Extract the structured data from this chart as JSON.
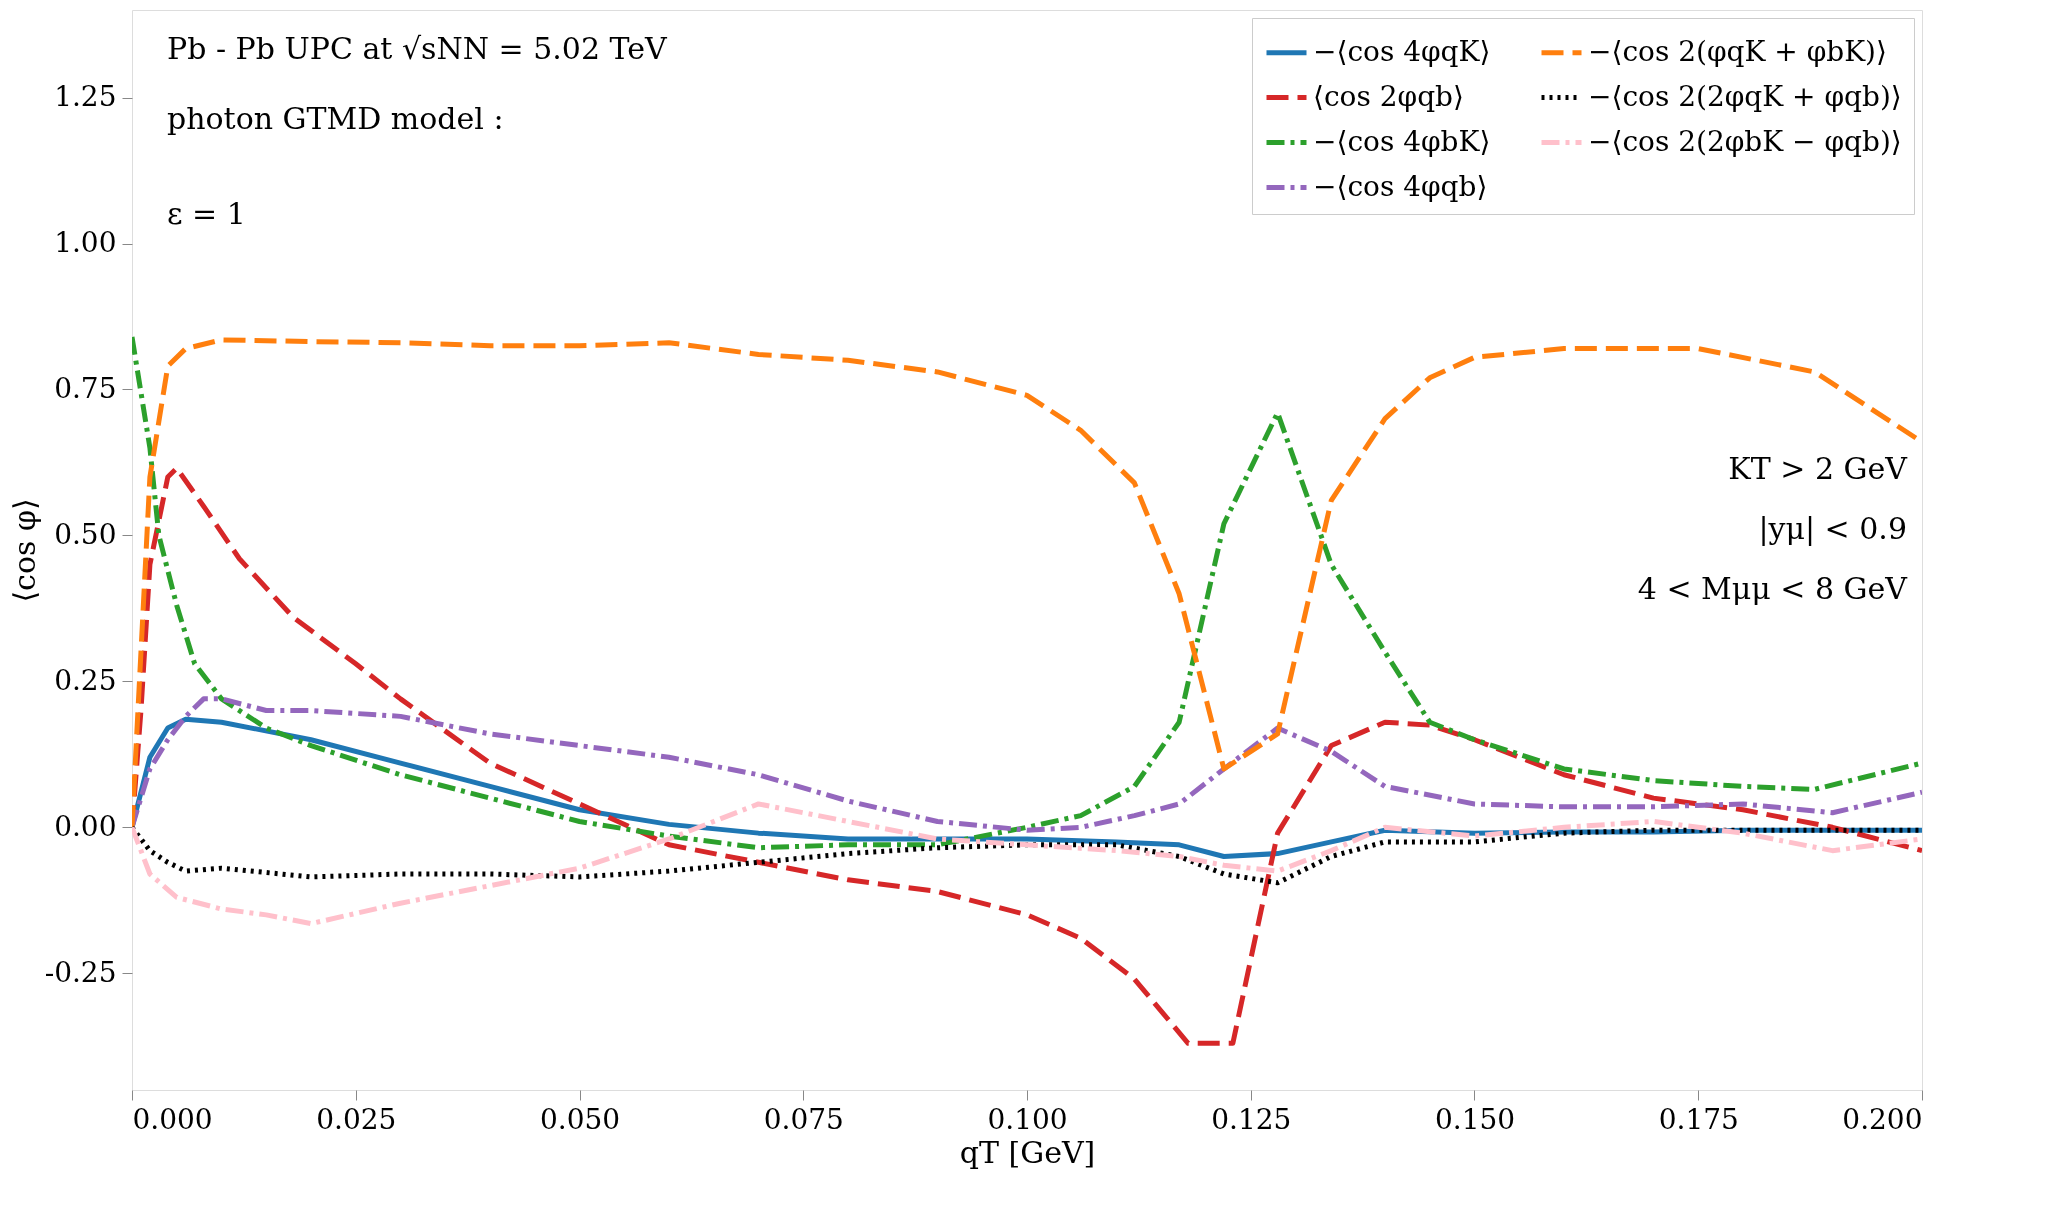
{
  "chart_data": {
    "type": "line",
    "xlabel": "qT [GeV]",
    "ylabel": "⟨cos φ⟩",
    "xlim": [
      0,
      0.2
    ],
    "ylim": [
      -0.45,
      1.4
    ],
    "xticks": [
      {
        "value": 0,
        "label": "0.000"
      },
      0.025,
      {
        "value": 0.05,
        "label": "0.050"
      },
      0.075,
      {
        "value": 0.1,
        "label": "0.100"
      },
      0.125,
      {
        "value": 0.15,
        "label": "0.150"
      },
      0.175,
      {
        "value": 0.2,
        "label": "0.200"
      }
    ],
    "yticks": [
      -0.25,
      {
        "value": 0,
        "label": "0.00"
      },
      0.25,
      {
        "value": 0.5,
        "label": "0.50"
      },
      0.75,
      {
        "value": 1,
        "label": "1.00"
      },
      1.25
    ],
    "grid": false,
    "legend": "top right",
    "marker": "none",
    "annotations": [
      "Pb - Pb UPC at √sNN = 5.02 TeV",
      "photon GTMD model :",
      "ε = 1",
      "KT > 2 GeV",
      "|yμ| < 0.9",
      "4 < Mμμ < 8 GeV"
    ],
    "series": [
      {
        "name": "−⟨cos 4φqK⟩",
        "color": "#1f77b4",
        "line_style": "solid",
        "x": [
          0,
          0.002,
          0.004,
          0.006,
          0.01,
          0.02,
          0.03,
          0.04,
          0.05,
          0.06,
          0.07,
          0.08,
          0.09,
          0.1,
          0.11,
          0.117,
          0.122,
          0.128,
          0.134,
          0.14,
          0.15,
          0.16,
          0.17,
          0.18,
          0.19,
          0.2
        ],
        "values": [
          0,
          0.12,
          0.17,
          0.185,
          0.18,
          0.15,
          0.11,
          0.07,
          0.03,
          0.005,
          -0.01,
          -0.02,
          -0.02,
          -0.02,
          -0.025,
          -0.03,
          -0.05,
          -0.045,
          -0.025,
          -0.005,
          -0.01,
          -0.008,
          -0.008,
          -0.005,
          -0.005,
          -0.005
        ]
      },
      {
        "name": "⟨cos 2φqb⟩",
        "color": "#d62728",
        "line_style": "dashed",
        "x": [
          0,
          0.001,
          0.002,
          0.004,
          0.005,
          0.008,
          0.012,
          0.018,
          0.025,
          0.03,
          0.04,
          0.05,
          0.06,
          0.07,
          0.08,
          0.09,
          0.1,
          0.106,
          0.112,
          0.118,
          0.123,
          0.128,
          0.134,
          0.14,
          0.145,
          0.15,
          0.16,
          0.17,
          0.18,
          0.19,
          0.2
        ],
        "values": [
          0,
          0.2,
          0.45,
          0.6,
          0.615,
          0.55,
          0.46,
          0.36,
          0.28,
          0.22,
          0.11,
          0.04,
          -0.03,
          -0.06,
          -0.09,
          -0.11,
          -0.15,
          -0.19,
          -0.26,
          -0.37,
          -0.37,
          -0.01,
          0.14,
          0.18,
          0.175,
          0.15,
          0.09,
          0.05,
          0.03,
          0.0,
          -0.04
        ]
      },
      {
        "name": "−⟨cos 4φbK⟩",
        "color": "#2ca02c",
        "line_style": "dashdot",
        "x": [
          0,
          0.002,
          0.003,
          0.005,
          0.007,
          0.01,
          0.015,
          0.02,
          0.03,
          0.04,
          0.05,
          0.06,
          0.07,
          0.08,
          0.09,
          0.1,
          0.106,
          0.112,
          0.117,
          0.122,
          0.128,
          0.134,
          0.14,
          0.145,
          0.15,
          0.16,
          0.17,
          0.18,
          0.188,
          0.2
        ],
        "values": [
          0.84,
          0.65,
          0.5,
          0.38,
          0.28,
          0.22,
          0.17,
          0.14,
          0.09,
          0.05,
          0.01,
          -0.015,
          -0.035,
          -0.03,
          -0.03,
          0.0,
          0.02,
          0.07,
          0.18,
          0.52,
          0.71,
          0.45,
          0.3,
          0.18,
          0.15,
          0.1,
          0.08,
          0.07,
          0.065,
          0.11
        ]
      },
      {
        "name": "−⟨cos 4φqb⟩",
        "color": "#9467bd",
        "line_style": "dashdot",
        "x": [
          0,
          0.002,
          0.004,
          0.006,
          0.008,
          0.01,
          0.015,
          0.02,
          0.03,
          0.04,
          0.05,
          0.06,
          0.07,
          0.08,
          0.09,
          0.1,
          0.106,
          0.112,
          0.117,
          0.122,
          0.128,
          0.134,
          0.14,
          0.15,
          0.16,
          0.17,
          0.18,
          0.19,
          0.2
        ],
        "values": [
          0,
          0.1,
          0.15,
          0.19,
          0.22,
          0.22,
          0.2,
          0.2,
          0.19,
          0.16,
          0.14,
          0.12,
          0.09,
          0.045,
          0.01,
          -0.005,
          0.0,
          0.02,
          0.04,
          0.1,
          0.17,
          0.13,
          0.07,
          0.04,
          0.035,
          0.035,
          0.04,
          0.025,
          0.06
        ]
      },
      {
        "name": "−⟨cos 2(φqK + φbK)⟩",
        "color": "#ff7f0e",
        "line_style": "dashed",
        "x": [
          0,
          0.001,
          0.002,
          0.004,
          0.006,
          0.01,
          0.02,
          0.03,
          0.04,
          0.05,
          0.06,
          0.07,
          0.08,
          0.09,
          0.1,
          0.106,
          0.112,
          0.117,
          0.122,
          0.128,
          0.134,
          0.14,
          0.145,
          0.15,
          0.16,
          0.17,
          0.175,
          0.188,
          0.2
        ],
        "values": [
          0,
          0.3,
          0.6,
          0.79,
          0.82,
          0.835,
          0.832,
          0.83,
          0.825,
          0.825,
          0.83,
          0.81,
          0.8,
          0.78,
          0.74,
          0.68,
          0.59,
          0.4,
          0.1,
          0.16,
          0.56,
          0.7,
          0.77,
          0.805,
          0.82,
          0.82,
          0.82,
          0.78,
          0.66
        ]
      },
      {
        "name": "−⟨cos 2(2φqK + φqb)⟩",
        "color": "#000000",
        "line_style": "dotted",
        "x": [
          0,
          0.002,
          0.004,
          0.006,
          0.01,
          0.02,
          0.03,
          0.04,
          0.05,
          0.06,
          0.07,
          0.08,
          0.09,
          0.1,
          0.11,
          0.117,
          0.122,
          0.128,
          0.134,
          0.14,
          0.15,
          0.16,
          0.17,
          0.18,
          0.19,
          0.2
        ],
        "values": [
          0,
          -0.04,
          -0.06,
          -0.075,
          -0.07,
          -0.085,
          -0.08,
          -0.08,
          -0.085,
          -0.075,
          -0.06,
          -0.045,
          -0.035,
          -0.03,
          -0.03,
          -0.05,
          -0.08,
          -0.095,
          -0.05,
          -0.025,
          -0.025,
          -0.01,
          -0.005,
          -0.005,
          -0.005,
          -0.005
        ]
      },
      {
        "name": "−⟨cos 2(2φbK − φqb)⟩",
        "color": "#ffc0cb",
        "line_style": "dashdot",
        "x": [
          0,
          0.002,
          0.005,
          0.01,
          0.015,
          0.02,
          0.03,
          0.04,
          0.05,
          0.06,
          0.07,
          0.08,
          0.09,
          0.1,
          0.11,
          0.117,
          0.122,
          0.128,
          0.134,
          0.14,
          0.15,
          0.16,
          0.17,
          0.18,
          0.19,
          0.2
        ],
        "values": [
          0,
          -0.08,
          -0.12,
          -0.14,
          -0.15,
          -0.165,
          -0.13,
          -0.1,
          -0.07,
          -0.02,
          0.04,
          0.01,
          -0.02,
          -0.03,
          -0.04,
          -0.05,
          -0.065,
          -0.075,
          -0.04,
          0.0,
          -0.015,
          0.0,
          0.01,
          -0.01,
          -0.04,
          -0.02
        ]
      }
    ]
  }
}
